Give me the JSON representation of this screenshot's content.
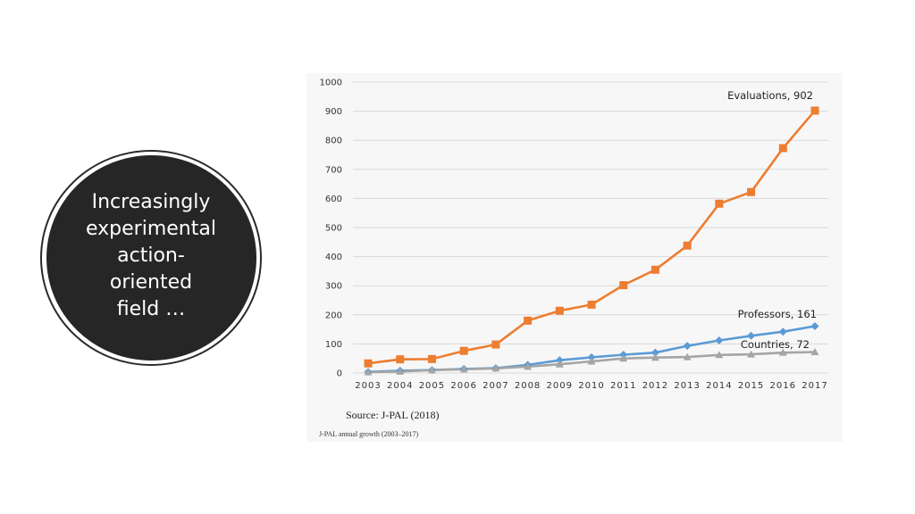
{
  "slide": {
    "circle_text": "Increasingly experimental action-oriented field …",
    "circle_lines": [
      "Increasingly",
      "experimental",
      "action-",
      "oriented",
      "field …"
    ],
    "stray_mark": ","
  },
  "chart_data": {
    "type": "line",
    "title": "",
    "xlabel": "",
    "ylabel": "",
    "x": [
      2003,
      2004,
      2005,
      2006,
      2007,
      2008,
      2009,
      2010,
      2011,
      2012,
      2013,
      2014,
      2015,
      2016,
      2017
    ],
    "ylim": [
      0,
      1000
    ],
    "yticks": [
      0,
      100,
      200,
      300,
      400,
      500,
      600,
      700,
      800,
      900,
      1000
    ],
    "grid": true,
    "series": [
      {
        "name": "Evaluations",
        "end_label": "Evaluations, 902",
        "color": "#ed7d31",
        "marker": "square",
        "values": [
          33,
          47,
          48,
          76,
          98,
          180,
          214,
          235,
          302,
          355,
          438,
          582,
          622,
          773,
          902
        ]
      },
      {
        "name": "Professors",
        "end_label": "Professors, 161",
        "color": "#5b9bd5",
        "marker": "diamond",
        "values": [
          4,
          8,
          10,
          14,
          17,
          28,
          44,
          54,
          63,
          70,
          93,
          112,
          128,
          142,
          161
        ]
      },
      {
        "name": "Countries",
        "end_label": "Countries, 72",
        "color": "#a5a5a5",
        "marker": "triangle",
        "values": [
          3,
          5,
          10,
          13,
          16,
          22,
          30,
          40,
          50,
          53,
          55,
          62,
          64,
          70,
          72
        ]
      }
    ],
    "source": "Source: J-PAL (2018)",
    "caption": "J-PAL annual growth (2003–2017)"
  }
}
